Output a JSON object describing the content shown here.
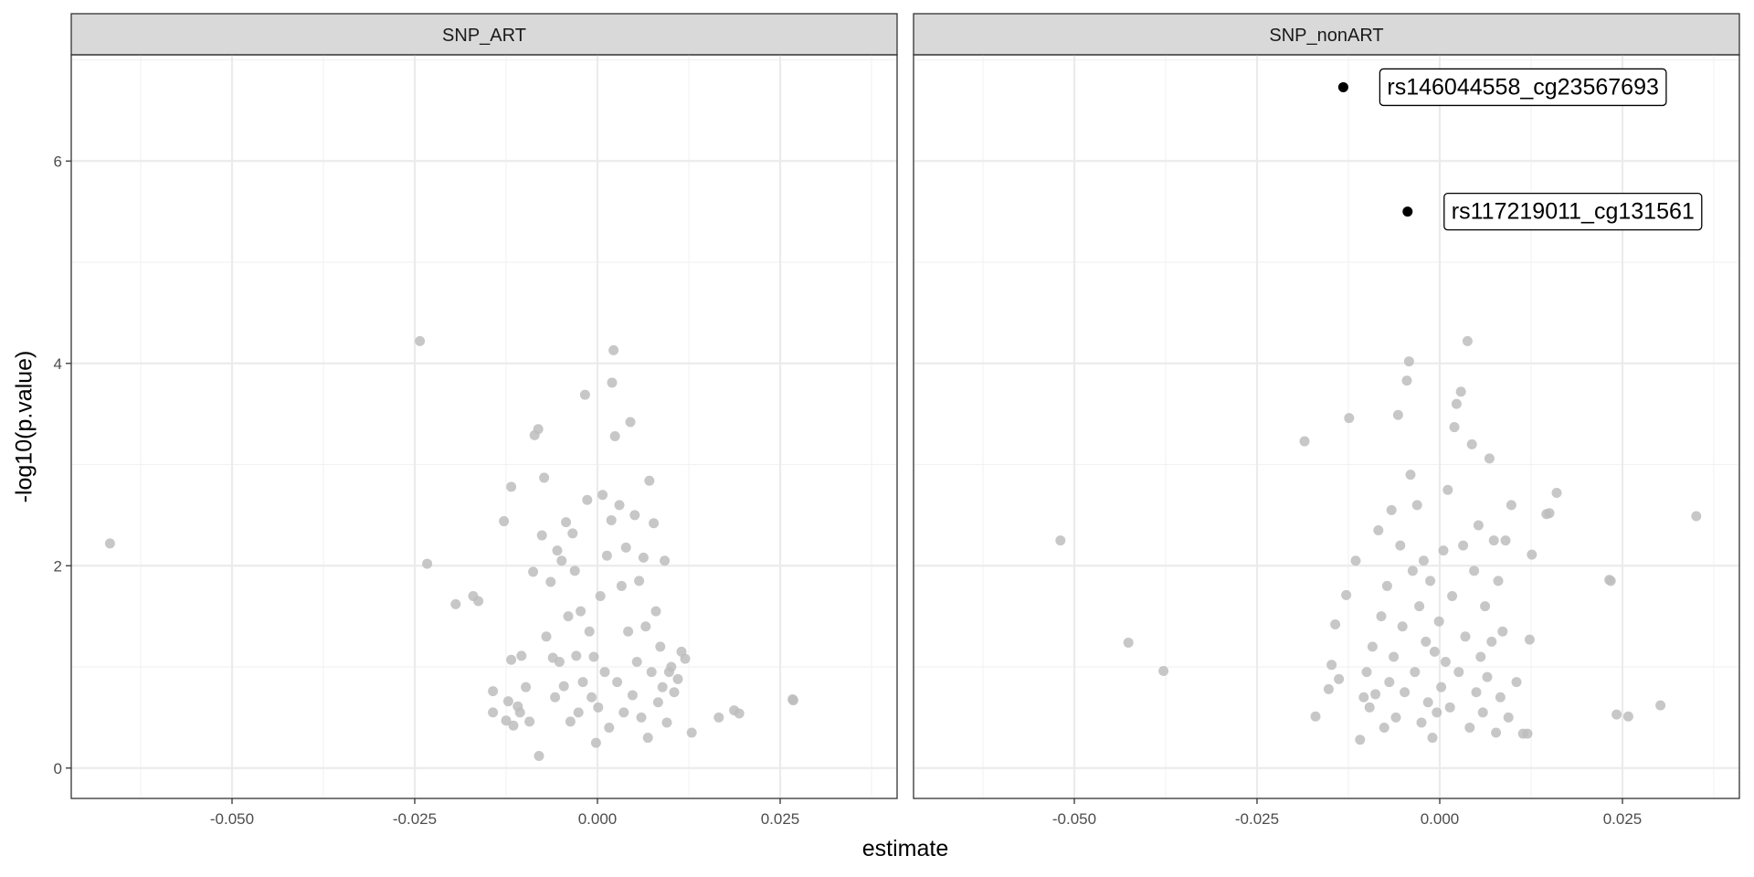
{
  "colors": {
    "background_point": "#bdbdbd",
    "highlight_point": "#000000",
    "strip_fill": "#d9d9d9",
    "grid_major": "#ebebeb",
    "grid_minor": "#f2f2f2",
    "panel_border": "#333333"
  },
  "chart_data": {
    "type": "scatter",
    "xlabel": "estimate",
    "ylabel": "-log10(p.value)",
    "xlim": [
      -0.072,
      0.041
    ],
    "ylim": [
      -0.3,
      7.05
    ],
    "x_ticks": [
      -0.05,
      -0.025,
      0.0,
      0.025
    ],
    "x_tick_labels": [
      "-0.050",
      "-0.025",
      "0.000",
      "0.025"
    ],
    "y_ticks": [
      0,
      2,
      4,
      6
    ],
    "y_tick_labels": [
      "0",
      "2",
      "4",
      "6"
    ],
    "grid": true,
    "panels": [
      {
        "strip_label": "SNP_ART",
        "background_points": [
          [
            -0.0667,
            2.22
          ],
          [
            -0.0243,
            4.22
          ],
          [
            -0.0233,
            2.02
          ],
          [
            -0.0194,
            1.62
          ],
          [
            -0.017,
            1.7
          ],
          [
            -0.0163,
            1.65
          ],
          [
            -0.0143,
            0.76
          ],
          [
            -0.0143,
            0.55
          ],
          [
            -0.0128,
            2.44
          ],
          [
            -0.0125,
            0.47
          ],
          [
            -0.0122,
            0.66
          ],
          [
            -0.0118,
            2.78
          ],
          [
            -0.0118,
            1.07
          ],
          [
            -0.0115,
            0.42
          ],
          [
            -0.0109,
            0.61
          ],
          [
            -0.0106,
            0.55
          ],
          [
            -0.0104,
            1.11
          ],
          [
            -0.0098,
            0.8
          ],
          [
            -0.0093,
            0.46
          ],
          [
            -0.0088,
            1.94
          ],
          [
            -0.0086,
            3.29
          ],
          [
            -0.0081,
            3.35
          ],
          [
            -0.008,
            0.12
          ],
          [
            -0.0076,
            2.3
          ],
          [
            -0.0073,
            2.87
          ],
          [
            -0.007,
            1.3
          ],
          [
            -0.0064,
            1.84
          ],
          [
            -0.0061,
            1.09
          ],
          [
            -0.0058,
            0.7
          ],
          [
            -0.0055,
            2.15
          ],
          [
            -0.0052,
            1.05
          ],
          [
            -0.0049,
            2.05
          ],
          [
            -0.0046,
            0.81
          ],
          [
            -0.0043,
            2.43
          ],
          [
            -0.004,
            1.5
          ],
          [
            -0.0037,
            0.46
          ],
          [
            -0.0034,
            2.32
          ],
          [
            -0.0031,
            1.95
          ],
          [
            -0.0029,
            1.11
          ],
          [
            -0.0026,
            0.55
          ],
          [
            -0.0023,
            1.55
          ],
          [
            -0.002,
            0.85
          ],
          [
            -0.0017,
            3.69
          ],
          [
            -0.0014,
            2.65
          ],
          [
            -0.0011,
            1.35
          ],
          [
            -0.0008,
            0.7
          ],
          [
            -0.0005,
            1.1
          ],
          [
            -0.0002,
            0.25
          ],
          [
            0.0001,
            0.6
          ],
          [
            0.0004,
            1.7
          ],
          [
            0.0007,
            2.7
          ],
          [
            0.001,
            0.95
          ],
          [
            0.0013,
            2.1
          ],
          [
            0.0016,
            0.4
          ],
          [
            0.0019,
            2.45
          ],
          [
            0.002,
            3.81
          ],
          [
            0.0022,
            4.13
          ],
          [
            0.0024,
            3.28
          ],
          [
            0.0027,
            0.85
          ],
          [
            0.003,
            2.6
          ],
          [
            0.0033,
            1.8
          ],
          [
            0.0036,
            0.55
          ],
          [
            0.0039,
            2.18
          ],
          [
            0.0042,
            1.35
          ],
          [
            0.0045,
            3.42
          ],
          [
            0.0048,
            0.72
          ],
          [
            0.0051,
            2.5
          ],
          [
            0.0054,
            1.05
          ],
          [
            0.0057,
            1.85
          ],
          [
            0.006,
            0.5
          ],
          [
            0.0063,
            2.08
          ],
          [
            0.0066,
            1.4
          ],
          [
            0.0069,
            0.3
          ],
          [
            0.0071,
            2.84
          ],
          [
            0.0074,
            0.95
          ],
          [
            0.0077,
            2.42
          ],
          [
            0.008,
            1.55
          ],
          [
            0.0083,
            0.65
          ],
          [
            0.0086,
            1.2
          ],
          [
            0.0089,
            0.8
          ],
          [
            0.0092,
            2.05
          ],
          [
            0.0095,
            0.45
          ],
          [
            0.0098,
            0.95
          ],
          [
            0.0101,
            1.0
          ],
          [
            0.0105,
            0.75
          ],
          [
            0.011,
            0.88
          ],
          [
            0.0115,
            1.15
          ],
          [
            0.012,
            1.08
          ],
          [
            0.0129,
            0.35
          ],
          [
            0.0166,
            0.5
          ],
          [
            0.0187,
            0.57
          ],
          [
            0.0194,
            0.54
          ],
          [
            0.0267,
            0.68
          ],
          [
            0.0268,
            0.67
          ]
        ],
        "highlighted_points": []
      },
      {
        "strip_label": "SNP_nonART",
        "background_points": [
          [
            -0.0519,
            2.25
          ],
          [
            -0.0426,
            1.24
          ],
          [
            -0.0378,
            0.96
          ],
          [
            -0.0185,
            3.23
          ],
          [
            -0.017,
            0.51
          ],
          [
            -0.0152,
            0.78
          ],
          [
            -0.0148,
            1.02
          ],
          [
            -0.0143,
            1.42
          ],
          [
            -0.0138,
            0.88
          ],
          [
            -0.0128,
            1.71
          ],
          [
            -0.0124,
            3.46
          ],
          [
            -0.0115,
            2.05
          ],
          [
            -0.0109,
            0.28
          ],
          [
            -0.0104,
            0.7
          ],
          [
            -0.01,
            0.95
          ],
          [
            -0.0096,
            0.6
          ],
          [
            -0.0092,
            1.2
          ],
          [
            -0.0088,
            0.73
          ],
          [
            -0.0084,
            2.35
          ],
          [
            -0.008,
            1.5
          ],
          [
            -0.0076,
            0.4
          ],
          [
            -0.0072,
            1.8
          ],
          [
            -0.0069,
            0.85
          ],
          [
            -0.0066,
            2.55
          ],
          [
            -0.0063,
            1.1
          ],
          [
            -0.006,
            0.5
          ],
          [
            -0.0057,
            3.49
          ],
          [
            -0.0054,
            2.2
          ],
          [
            -0.0051,
            1.4
          ],
          [
            -0.0048,
            0.75
          ],
          [
            -0.0045,
            3.83
          ],
          [
            -0.0042,
            4.02
          ],
          [
            -0.004,
            2.9
          ],
          [
            -0.0037,
            1.95
          ],
          [
            -0.0034,
            0.95
          ],
          [
            -0.0031,
            2.6
          ],
          [
            -0.0028,
            1.6
          ],
          [
            -0.0025,
            0.45
          ],
          [
            -0.0022,
            2.05
          ],
          [
            -0.0019,
            1.25
          ],
          [
            -0.0016,
            0.65
          ],
          [
            -0.0013,
            1.85
          ],
          [
            -0.001,
            0.3
          ],
          [
            -0.0007,
            1.15
          ],
          [
            -0.0004,
            0.55
          ],
          [
            -0.0001,
            1.45
          ],
          [
            0.0002,
            0.8
          ],
          [
            0.0005,
            2.15
          ],
          [
            0.0008,
            1.05
          ],
          [
            0.0011,
            2.75
          ],
          [
            0.0014,
            0.6
          ],
          [
            0.0017,
            1.7
          ],
          [
            0.002,
            3.37
          ],
          [
            0.0023,
            3.6
          ],
          [
            0.0026,
            0.95
          ],
          [
            0.0029,
            3.72
          ],
          [
            0.0032,
            2.2
          ],
          [
            0.0035,
            1.3
          ],
          [
            0.0038,
            4.22
          ],
          [
            0.0041,
            0.4
          ],
          [
            0.0044,
            3.2
          ],
          [
            0.0047,
            1.95
          ],
          [
            0.005,
            0.75
          ],
          [
            0.0053,
            2.4
          ],
          [
            0.0056,
            1.1
          ],
          [
            0.0059,
            0.55
          ],
          [
            0.0062,
            1.6
          ],
          [
            0.0065,
            0.9
          ],
          [
            0.0068,
            3.06
          ],
          [
            0.0071,
            1.25
          ],
          [
            0.0074,
            2.25
          ],
          [
            0.0077,
            0.35
          ],
          [
            0.008,
            1.85
          ],
          [
            0.0083,
            0.7
          ],
          [
            0.0086,
            1.35
          ],
          [
            0.009,
            2.25
          ],
          [
            0.0094,
            0.5
          ],
          [
            0.0098,
            2.6
          ],
          [
            0.0105,
            0.85
          ],
          [
            0.0114,
            0.34
          ],
          [
            0.012,
            0.34
          ],
          [
            0.0123,
            1.27
          ],
          [
            0.0126,
            2.11
          ],
          [
            0.0146,
            2.51
          ],
          [
            0.015,
            2.52
          ],
          [
            0.016,
            2.72
          ],
          [
            0.0232,
            1.86
          ],
          [
            0.0234,
            1.85
          ],
          [
            0.0242,
            0.53
          ],
          [
            0.0258,
            0.51
          ],
          [
            0.0302,
            0.62
          ],
          [
            0.0351,
            2.49
          ]
        ],
        "highlighted_points": [
          {
            "x": -0.0132,
            "y": 6.73,
            "label": "rs146044558_cg23567693"
          },
          {
            "x": -0.0044,
            "y": 5.5,
            "label": "rs117219011_cg131561"
          }
        ]
      }
    ]
  }
}
